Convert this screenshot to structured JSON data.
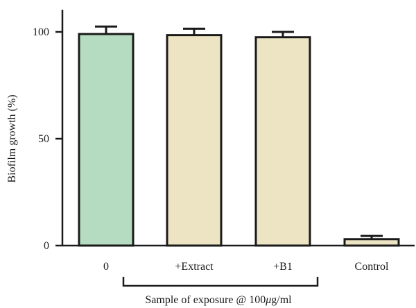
{
  "chart_data": {
    "type": "bar",
    "categories": [
      "0",
      "+Extract",
      "+B1",
      "Control"
    ],
    "values": [
      99,
      98.5,
      97.5,
      3
    ],
    "errors": [
      3.5,
      3,
      2.5,
      1.5
    ],
    "bar_colors": [
      "#b5dcc0",
      "#ece4c3",
      "#ece4c3",
      "#ece4c3"
    ],
    "ylabel": "Biofilm growth (%)",
    "xlabel_prefix": "Sample of exposure @ 100",
    "xlabel_mu": "μ",
    "xlabel_suffix": "g/ml",
    "yticks": [
      0,
      50,
      100
    ],
    "ylim": [
      0,
      110
    ],
    "grid": false,
    "bracket_categories": [
      "0",
      "+Extract",
      "+B1"
    ]
  }
}
